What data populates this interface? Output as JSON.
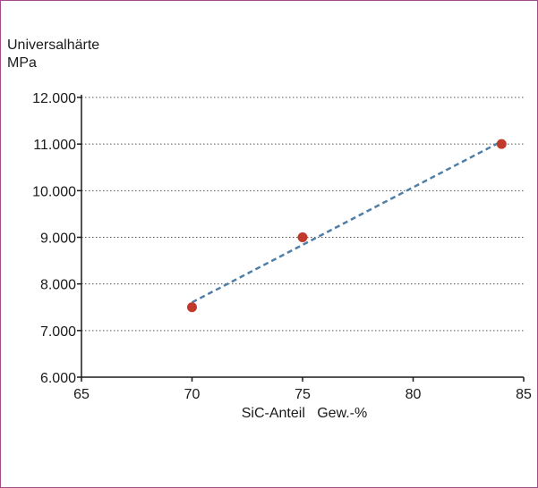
{
  "chart_data": {
    "type": "scatter",
    "ylabel_lines": [
      "Universalhärte",
      "MPa"
    ],
    "xlabel": "SiC-Anteil   Gew.-%",
    "xlim": [
      65,
      85
    ],
    "ylim": [
      6000,
      12000
    ],
    "x_ticks": [
      65,
      70,
      75,
      80,
      85
    ],
    "y_ticks": [
      6000,
      7000,
      8000,
      9000,
      10000,
      11000,
      12000
    ],
    "x_tick_labels": [
      "65",
      "70",
      "75",
      "80",
      "85"
    ],
    "y_tick_labels": [
      "6.000",
      "7.000",
      "8.000",
      "9.000",
      "10.000",
      "11.000",
      "12.000"
    ],
    "grid": "horizontal-dotted",
    "points": [
      {
        "x": 70,
        "y": 7500
      },
      {
        "x": 75,
        "y": 9000
      },
      {
        "x": 84,
        "y": 11000
      }
    ],
    "trendline": {
      "type": "linear-dashed",
      "x_range": [
        70,
        84
      ]
    },
    "colors": {
      "points": "#c0392b",
      "trendline": "#4f7fa8",
      "axis": "#1a1a1a",
      "grid": "#555555",
      "frame": "#a24c8e"
    }
  }
}
